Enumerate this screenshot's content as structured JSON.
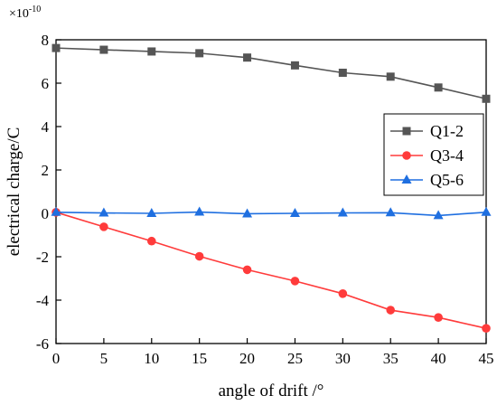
{
  "chart_data": {
    "type": "line",
    "xlabel": "angle of drift /°",
    "ylabel": "electrical charge/C",
    "y_multiplier": "×10",
    "y_multiplier_exp": "-10",
    "xlim": [
      0,
      45
    ],
    "ylim": [
      -6,
      8
    ],
    "x_ticks": [
      0,
      5,
      10,
      15,
      20,
      25,
      30,
      35,
      40,
      45
    ],
    "y_ticks": [
      -6,
      -4,
      -2,
      0,
      2,
      4,
      6,
      8
    ],
    "grid": false,
    "legend_position": "right",
    "x": [
      0,
      5,
      10,
      15,
      20,
      25,
      30,
      35,
      40,
      45
    ],
    "series": [
      {
        "name": "Q1-2",
        "color": "#555555",
        "marker": "square",
        "values": [
          7.62,
          7.54,
          7.46,
          7.38,
          7.18,
          6.82,
          6.48,
          6.3,
          5.8,
          5.28
        ]
      },
      {
        "name": "Q3-4",
        "color": "#ff3b3b",
        "marker": "circle",
        "values": [
          0.05,
          -0.62,
          -1.28,
          -1.98,
          -2.6,
          -3.12,
          -3.7,
          -4.46,
          -4.8,
          -5.3
        ]
      },
      {
        "name": "Q5-6",
        "color": "#1f6fe0",
        "marker": "triangle",
        "values": [
          0.05,
          0.02,
          0.0,
          0.06,
          -0.02,
          0.0,
          0.02,
          0.03,
          -0.1,
          0.05
        ]
      }
    ]
  }
}
